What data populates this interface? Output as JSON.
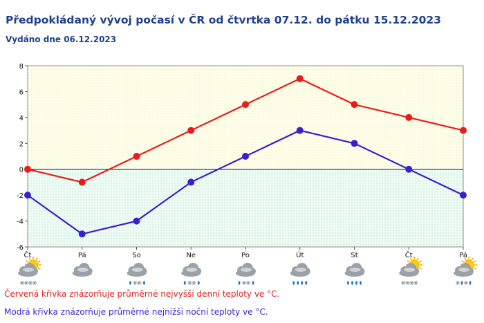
{
  "header": {
    "title": "Předpokládaný vývoj počasí v ČR od čtvrtka 07.12. do pátku 15.12.2023",
    "issued": "Vydáno dne 06.12.2023"
  },
  "chart_data": {
    "type": "line",
    "categories": [
      "Čt",
      "Pá",
      "So",
      "Ne",
      "Po",
      "Út",
      "St",
      "Čt",
      "Pá"
    ],
    "ylim": [
      -6,
      8
    ],
    "yticks": [
      -6,
      -4,
      -2,
      0,
      2,
      4,
      6,
      8
    ],
    "grid": false,
    "series": [
      {
        "key": "max",
        "color": "#e81c1c",
        "values": [
          0,
          -1,
          1,
          3,
          5,
          7,
          5,
          4,
          3
        ]
      },
      {
        "key": "min",
        "color": "#3a1fd0",
        "values": [
          -2,
          -5,
          -4,
          -1,
          1,
          3,
          2,
          0,
          -2
        ]
      }
    ],
    "weather_icons": [
      "sun-cloud-snow-icon",
      "cloud-icon",
      "cloud-snow-rain-icon",
      "cloud-snow-rain-icon",
      "cloud-snow-rain-icon",
      "cloud-rain-icon",
      "cloud-rain-icon",
      "sun-cloud-snow-icon",
      "sun-cloud-snow-rain-icon"
    ]
  },
  "legend_notes": {
    "max_note": "Červená křivka znázorňuje průměrné nejvyšší denní teploty ve °C.",
    "min_note": "Modrá křivka znázorňuje průměrné nejnižší noční teploty ve °C."
  }
}
